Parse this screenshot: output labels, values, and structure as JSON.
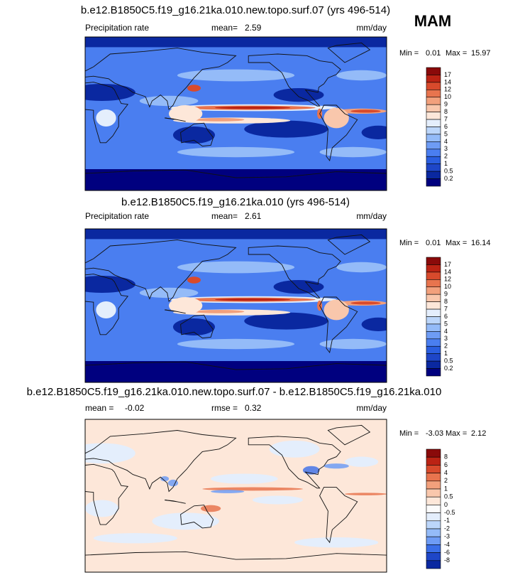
{
  "season": "MAM",
  "panels": [
    {
      "title": "b.e12.B1850C5.f19_g16.21ka.010.new.topo.surf.07 (yrs 496-514)",
      "left_label": "Precipitation rate",
      "stat_label": "mean=",
      "stat_value": 2.59,
      "units": "mm/day",
      "min_label": "Min =",
      "min": 0.01,
      "max_label": "Max =",
      "max": 15.97,
      "colorbar": {
        "levels": [
          17,
          14,
          12,
          10,
          9,
          8,
          7,
          6,
          5,
          4,
          3,
          2,
          1,
          0.5,
          0.2
        ],
        "colors": [
          "#8a0a0a",
          "#bb2314",
          "#d84a2c",
          "#e8744e",
          "#f2a07c",
          "#f9c7ac",
          "#fde7d9",
          "#e4eefc",
          "#bcd6fa",
          "#94bbf8",
          "#6e9cf5",
          "#4a7ef0",
          "#2a5ee0",
          "#1e46c8",
          "#0a28a0",
          "#00007f"
        ]
      }
    },
    {
      "title": "b.e12.B1850C5.f19_g16.21ka.010 (yrs 496-514)",
      "left_label": "Precipitation rate",
      "stat_label": "mean=",
      "stat_value": 2.61,
      "units": "mm/day",
      "min_label": "Min =",
      "min": 0.01,
      "max_label": "Max =",
      "max": 16.14,
      "colorbar": {
        "levels": [
          17,
          14,
          12,
          10,
          9,
          8,
          7,
          6,
          5,
          4,
          3,
          2,
          1,
          0.5,
          0.2
        ],
        "colors": [
          "#8a0a0a",
          "#bb2314",
          "#d84a2c",
          "#e8744e",
          "#f2a07c",
          "#f9c7ac",
          "#fde7d9",
          "#e4eefc",
          "#bcd6fa",
          "#94bbf8",
          "#6e9cf5",
          "#4a7ef0",
          "#2a5ee0",
          "#1e46c8",
          "#0a28a0",
          "#00007f"
        ]
      }
    },
    {
      "title": "b.e12.B1850C5.f19_g16.21ka.010.new.topo.surf.07 - b.e12.B1850C5.f19_g16.21ka.010",
      "left_label": "mean =",
      "left_value": -0.02,
      "stat_label": "rmse =",
      "stat_value": 0.32,
      "units": "mm/day",
      "min_label": "Min =",
      "min": -3.03,
      "max_label": "Max =",
      "max": 2.12,
      "colorbar": {
        "levels": [
          8,
          6,
          4,
          2,
          1,
          0.5,
          0,
          -0.5,
          -1,
          -2,
          -3,
          -4,
          -6,
          -8
        ],
        "colors": [
          "#8a0a0a",
          "#bb2314",
          "#d84a2c",
          "#e8744e",
          "#f2a07c",
          "#f9c7ac",
          "#fde7d9",
          "#fbfbfb",
          "#e4eefc",
          "#bcd6fa",
          "#94bbf8",
          "#6e9cf5",
          "#3a6ee8",
          "#1e46c8",
          "#0a28a0"
        ]
      }
    }
  ]
}
